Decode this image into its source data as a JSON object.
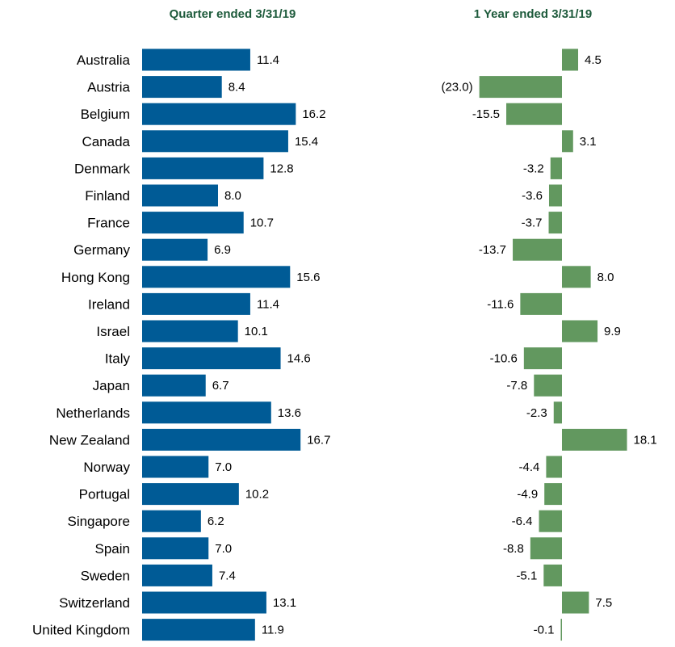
{
  "chart_data": [
    {
      "type": "bar",
      "orientation": "horizontal",
      "title": "Quarter ended 3/31/19",
      "categories": [
        "Australia",
        "Austria",
        "Belgium",
        "Canada",
        "Denmark",
        "Finland",
        "France",
        "Germany",
        "Hong Kong",
        "Ireland",
        "Israel",
        "Italy",
        "Japan",
        "Netherlands",
        "New Zealand",
        "Norway",
        "Portugal",
        "Singapore",
        "Spain",
        "Sweden",
        "Switzerland",
        "United Kingdom"
      ],
      "values": [
        11.4,
        8.4,
        16.2,
        15.4,
        12.8,
        8.0,
        10.7,
        6.9,
        15.6,
        11.4,
        10.1,
        14.6,
        6.7,
        13.6,
        16.7,
        7.0,
        10.2,
        6.2,
        7.0,
        7.4,
        13.1,
        11.9
      ],
      "value_labels": [
        "11.4",
        "8.4",
        "16.2",
        "15.4",
        "12.8",
        "8.0",
        "10.7",
        "6.9",
        "15.6",
        "11.4",
        "10.1",
        "14.6",
        "6.7",
        "13.6",
        "16.7",
        "7.0",
        "10.2",
        "6.2",
        "7.0",
        "7.4",
        "13.1",
        "11.9"
      ],
      "xlabel": "",
      "ylabel": "",
      "xlim": [
        0,
        17
      ],
      "grid": false,
      "legend": "none",
      "bar_color": "#005b96",
      "title_color": "#1e5b3c"
    },
    {
      "type": "bar",
      "orientation": "horizontal",
      "title": "1 Year ended 3/31/19",
      "categories": [
        "Australia",
        "Austria",
        "Belgium",
        "Canada",
        "Denmark",
        "Finland",
        "France",
        "Germany",
        "Hong Kong",
        "Ireland",
        "Israel",
        "Italy",
        "Japan",
        "Netherlands",
        "New Zealand",
        "Norway",
        "Portugal",
        "Singapore",
        "Spain",
        "Sweden",
        "Switzerland",
        "United Kingdom"
      ],
      "values": [
        4.5,
        -23.0,
        -15.5,
        3.1,
        -3.2,
        -3.6,
        -3.7,
        -13.7,
        8.0,
        -11.6,
        9.9,
        -10.6,
        -7.8,
        -2.3,
        18.1,
        -4.4,
        -4.9,
        -6.4,
        -8.8,
        -5.1,
        7.5,
        -0.1
      ],
      "value_labels": [
        "4.5",
        "(23.0)",
        "-15.5",
        "3.1",
        "-3.2",
        "-3.6",
        "-3.7",
        "-13.7",
        "8.0",
        "-11.6",
        "9.9",
        "-10.6",
        "-7.8",
        "-2.3",
        "18.1",
        "-4.4",
        "-4.9",
        "-6.4",
        "-8.8",
        "-5.1",
        "7.5",
        "-0.1"
      ],
      "highlight_label_color": "#e8102a",
      "xlabel": "",
      "ylabel": "",
      "xlim": [
        -23,
        18.1
      ],
      "grid": false,
      "legend": "none",
      "bar_color": "#62985f",
      "title_color": "#1e5b3c"
    }
  ]
}
